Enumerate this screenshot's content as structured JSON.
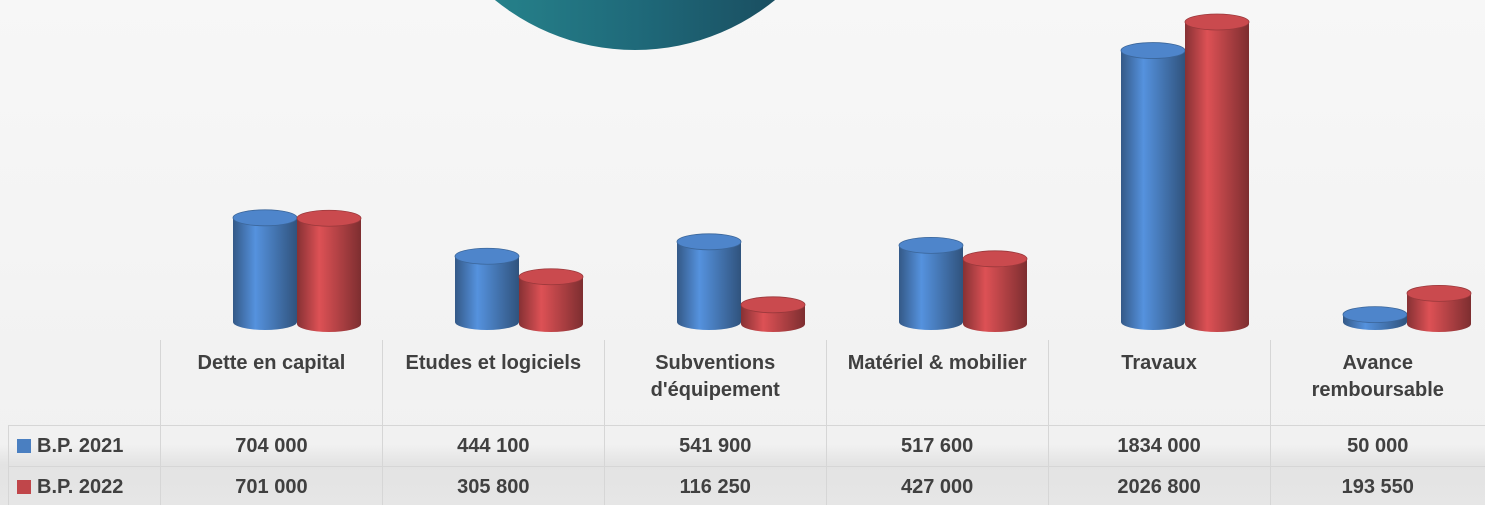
{
  "chart_data": {
    "type": "bar3d",
    "categories": [
      "Dette en capital",
      "Etudes et logiciels",
      "Subventions d'équipement",
      "Matériel & mobilier",
      "Travaux",
      "Avance remboursable"
    ],
    "series": [
      {
        "name": "B.P. 2021",
        "color": "#4a7fc1",
        "values": [
          704000,
          444100,
          541900,
          517600,
          1834000,
          50000
        ],
        "value_labels": [
          "704 000",
          "444 100",
          "541 900",
          "517 600",
          "1834 000",
          "50 000"
        ]
      },
      {
        "name": "B.P. 2022",
        "color": "#c0464a",
        "values": [
          701000,
          305800,
          116250,
          427000,
          2026800,
          193550
        ],
        "value_labels": [
          "701 000",
          "305 800",
          "116 250",
          "427 000",
          "2026 800",
          "193 550"
        ]
      }
    ]
  }
}
